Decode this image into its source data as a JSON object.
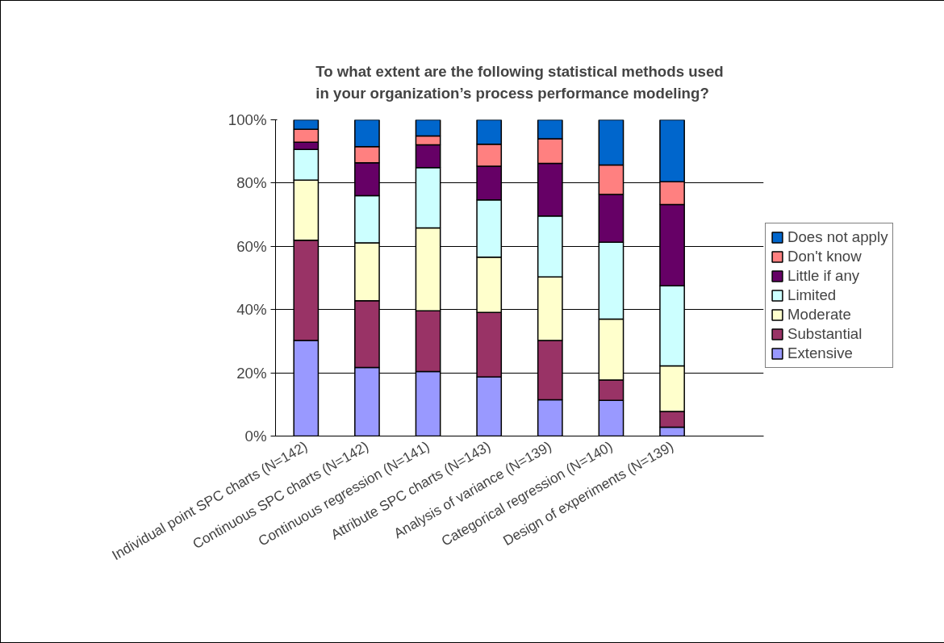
{
  "chart_data": {
    "type": "bar",
    "stacked": true,
    "title": "To what extent are the following statistical methods used\nin your organization’s process performance modeling?",
    "categories": [
      "Individual point SPC charts (N=142)",
      "Continuous SPC charts (N=142)",
      "Continuous regression (N=141)",
      "Attribute SPC charts (N=143)",
      "Analysis of variance (N=139)",
      "Categorical regression (N=140)",
      "Design of experiments (N=139)",
      null
    ],
    "series": [
      {
        "name": "Extensive",
        "color": "#9999ff",
        "values": [
          30.2,
          21.7,
          20.4,
          18.7,
          11.5,
          11.3,
          2.8,
          null
        ]
      },
      {
        "name": "Substantial",
        "color": "#993366",
        "values": [
          31.7,
          21.1,
          19.2,
          20.4,
          18.7,
          6.4,
          5.0,
          null
        ]
      },
      {
        "name": "Moderate",
        "color": "#ffffcc",
        "values": [
          19.0,
          18.3,
          26.2,
          17.5,
          20.1,
          19.3,
          14.4,
          null
        ]
      },
      {
        "name": "Limited",
        "color": "#ccffff",
        "values": [
          9.7,
          14.9,
          19.1,
          18.1,
          19.3,
          24.3,
          25.3,
          null
        ]
      },
      {
        "name": "Little if any",
        "color": "#660066",
        "values": [
          2.3,
          10.4,
          7.2,
          10.6,
          16.6,
          15.1,
          25.7,
          null
        ]
      },
      {
        "name": "Don't know",
        "color": "#ff8080",
        "values": [
          4.1,
          5.1,
          2.8,
          7.0,
          7.8,
          9.3,
          7.2,
          null
        ]
      },
      {
        "name": "Does not apply",
        "color": "#0066cc",
        "values": [
          3.0,
          8.5,
          5.1,
          7.7,
          6.0,
          14.3,
          19.6,
          null
        ]
      }
    ],
    "ylim": [
      0,
      100
    ],
    "yticks": [
      {
        "value": 0,
        "label": "0%"
      },
      {
        "value": 20,
        "label": "20%"
      },
      {
        "value": 40,
        "label": "40%"
      },
      {
        "value": 60,
        "label": "60%"
      },
      {
        "value": 80,
        "label": "80%"
      },
      {
        "value": 100,
        "label": "100%"
      }
    ],
    "grid": "y",
    "legend": "right"
  }
}
